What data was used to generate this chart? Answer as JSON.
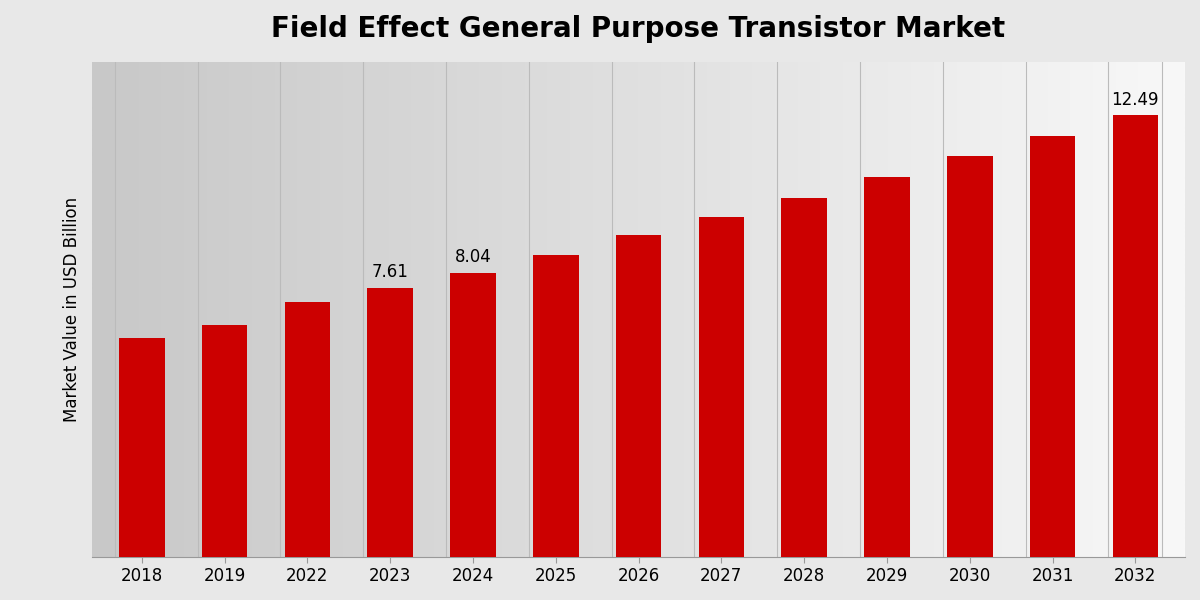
{
  "title": "Field Effect General Purpose Transistor Market",
  "ylabel": "Market Value in USD Billion",
  "categories": [
    "2018",
    "2019",
    "2022",
    "2023",
    "2024",
    "2025",
    "2026",
    "2027",
    "2028",
    "2029",
    "2030",
    "2031",
    "2032"
  ],
  "values": [
    6.2,
    6.55,
    7.2,
    7.61,
    8.04,
    8.55,
    9.1,
    9.6,
    10.15,
    10.75,
    11.35,
    11.9,
    12.49
  ],
  "bar_color": "#CC0000",
  "annotated_bars": {
    "2023": "7.61",
    "2024": "8.04",
    "2032": "12.49"
  },
  "ylim": [
    0,
    14
  ],
  "title_fontsize": 20,
  "label_fontsize": 12,
  "tick_fontsize": 12,
  "bg_left": "#c8c8c8",
  "bg_right": "#f8f8f8"
}
